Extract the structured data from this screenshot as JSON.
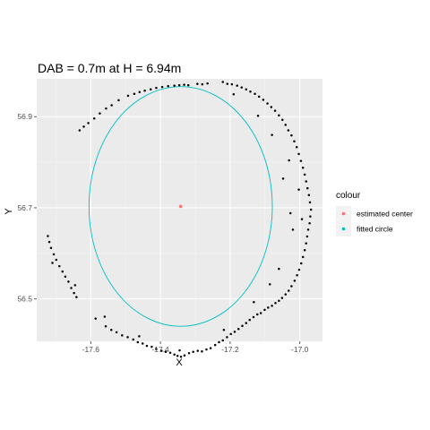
{
  "chart_data": {
    "type": "scatter",
    "title": "DAB = 0.7m at H = 6.94m",
    "xlabel": "X",
    "ylabel": "Y",
    "xlim": [
      -17.755,
      -16.935
    ],
    "ylim": [
      56.407,
      56.983
    ],
    "x_ticks": [
      -17.6,
      -17.4,
      -17.2,
      -17.0
    ],
    "x_tick_labels": [
      "-17.6",
      "-17.4",
      "-17.2",
      "-17.0"
    ],
    "y_ticks": [
      56.5,
      56.7,
      56.9
    ],
    "y_tick_labels": [
      "56.5",
      "56.7",
      "56.9"
    ],
    "grid": true,
    "legend_position": "right",
    "legend": {
      "title": "colour",
      "entries": [
        {
          "label": "estimated center",
          "color": "#F8766D"
        },
        {
          "label": "fitted circle",
          "color": "#00BFC4"
        }
      ]
    },
    "fitted_circle": {
      "center_x": -17.342,
      "center_y": 56.703,
      "radius": 0.263,
      "color": "#00BFC4"
    },
    "estimated_center": {
      "x": -17.342,
      "y": 56.703,
      "color": "#F8766D"
    },
    "points": [
      [
        -17.723,
        56.638
      ],
      [
        -17.719,
        56.625
      ],
      [
        -17.714,
        56.612
      ],
      [
        -17.706,
        56.598
      ],
      [
        -17.699,
        56.586
      ],
      [
        -17.69,
        56.572
      ],
      [
        -17.681,
        56.56
      ],
      [
        -17.673,
        56.549
      ],
      [
        -17.664,
        56.538
      ],
      [
        -17.656,
        56.524
      ],
      [
        -17.648,
        56.513
      ],
      [
        -17.641,
        56.504
      ],
      [
        -17.586,
        56.457
      ],
      [
        -17.557,
        56.44
      ],
      [
        -17.541,
        56.432
      ],
      [
        -17.526,
        56.427
      ],
      [
        -17.51,
        56.42
      ],
      [
        -17.494,
        56.416
      ],
      [
        -17.478,
        56.411
      ],
      [
        -17.465,
        56.405
      ],
      [
        -17.451,
        56.402
      ],
      [
        -17.439,
        56.397
      ],
      [
        -17.425,
        56.395
      ],
      [
        -17.412,
        56.39
      ],
      [
        -17.397,
        56.386
      ],
      [
        -17.385,
        56.384
      ],
      [
        -17.372,
        56.382
      ],
      [
        -17.36,
        56.378
      ],
      [
        -17.351,
        56.375
      ],
      [
        -17.341,
        56.373
      ],
      [
        -17.331,
        56.376
      ],
      [
        -17.318,
        56.381
      ],
      [
        -17.306,
        56.384
      ],
      [
        -17.293,
        56.386
      ],
      [
        -17.281,
        56.385
      ],
      [
        -17.268,
        56.389
      ],
      [
        -17.256,
        56.392
      ],
      [
        -17.243,
        56.399
      ],
      [
        -17.232,
        56.405
      ],
      [
        -17.221,
        56.409
      ],
      [
        -17.209,
        56.416
      ],
      [
        -17.198,
        56.423
      ],
      [
        -17.187,
        56.428
      ],
      [
        -17.176,
        56.434
      ],
      [
        -17.165,
        56.441
      ],
      [
        -17.154,
        56.447
      ],
      [
        -17.144,
        56.454
      ],
      [
        -17.133,
        56.46
      ],
      [
        -17.122,
        56.466
      ],
      [
        -17.112,
        56.469
      ],
      [
        -17.101,
        56.476
      ],
      [
        -17.091,
        56.481
      ],
      [
        -17.08,
        56.485
      ],
      [
        -17.07,
        56.491
      ],
      [
        -17.06,
        56.496
      ],
      [
        -17.051,
        56.502
      ],
      [
        -17.041,
        56.51
      ],
      [
        -17.032,
        56.518
      ],
      [
        -17.024,
        56.528
      ],
      [
        -17.015,
        56.54
      ],
      [
        -17.008,
        56.552
      ],
      [
        -17.002,
        56.564
      ],
      [
        -16.996,
        56.578
      ],
      [
        -16.991,
        56.592
      ],
      [
        -16.986,
        56.607
      ],
      [
        -16.982,
        56.622
      ],
      [
        -16.979,
        56.637
      ],
      [
        -16.976,
        56.652
      ],
      [
        -16.972,
        56.666
      ],
      [
        -16.97,
        56.681
      ],
      [
        -16.968,
        56.696
      ],
      [
        -16.971,
        56.712
      ],
      [
        -16.974,
        56.728
      ],
      [
        -16.978,
        56.743
      ],
      [
        -16.982,
        56.758
      ],
      [
        -16.986,
        56.773
      ],
      [
        -16.991,
        56.788
      ],
      [
        -16.997,
        56.803
      ],
      [
        -17.003,
        56.818
      ],
      [
        -17.009,
        56.833
      ],
      [
        -17.016,
        56.846
      ],
      [
        -17.024,
        56.859
      ],
      [
        -17.033,
        56.87
      ],
      [
        -17.041,
        56.882
      ],
      [
        -17.05,
        56.893
      ],
      [
        -17.06,
        56.903
      ],
      [
        -17.071,
        56.913
      ],
      [
        -17.082,
        56.921
      ],
      [
        -17.093,
        56.929
      ],
      [
        -17.105,
        56.937
      ],
      [
        -17.117,
        56.944
      ],
      [
        -17.129,
        56.95
      ],
      [
        -17.142,
        56.955
      ],
      [
        -17.154,
        56.96
      ],
      [
        -17.167,
        56.964
      ],
      [
        -17.18,
        56.968
      ],
      [
        -17.195,
        56.971
      ],
      [
        -17.208,
        56.972
      ],
      [
        -17.221,
        56.976
      ],
      [
        -17.265,
        56.973
      ],
      [
        -17.28,
        56.971
      ],
      [
        -17.294,
        56.972
      ],
      [
        -17.32,
        56.969
      ],
      [
        -17.332,
        56.97
      ],
      [
        -17.346,
        56.969
      ],
      [
        -17.36,
        56.968
      ],
      [
        -17.378,
        56.967
      ],
      [
        -17.395,
        56.965
      ],
      [
        -17.412,
        56.963
      ],
      [
        -17.428,
        56.96
      ],
      [
        -17.445,
        56.957
      ],
      [
        -17.46,
        56.954
      ],
      [
        -17.475,
        56.95
      ],
      [
        -17.493,
        56.946
      ],
      [
        -17.52,
        56.936
      ],
      [
        -17.54,
        56.925
      ],
      [
        -17.556,
        56.918
      ],
      [
        -17.574,
        56.907
      ],
      [
        -17.59,
        56.896
      ],
      [
        -17.607,
        56.886
      ],
      [
        -17.62,
        56.878
      ],
      [
        -17.632,
        56.87
      ],
      [
        -17.048,
        56.764
      ],
      [
        -17.027,
        56.688
      ],
      [
        -17.02,
        56.652
      ],
      [
        -17.06,
        56.566
      ],
      [
        -17.086,
        56.532
      ],
      [
        -17.132,
        56.493
      ],
      [
        -17.218,
        56.432
      ],
      [
        -17.345,
        56.387
      ],
      [
        -17.461,
        56.418
      ],
      [
        -17.56,
        56.461
      ],
      [
        -17.645,
        56.53
      ],
      [
        -17.71,
        56.579
      ],
      [
        -17.19,
        56.949
      ],
      [
        -17.12,
        56.902
      ],
      [
        -17.08,
        56.86
      ],
      [
        -17.031,
        56.804
      ],
      [
        -17.003,
        56.74
      ],
      [
        -16.994,
        56.675
      ]
    ]
  }
}
